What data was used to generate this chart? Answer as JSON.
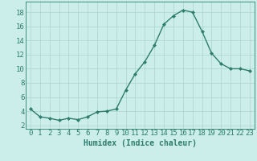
{
  "x": [
    0,
    1,
    2,
    3,
    4,
    5,
    6,
    7,
    8,
    9,
    10,
    11,
    12,
    13,
    14,
    15,
    16,
    17,
    18,
    19,
    20,
    21,
    22,
    23
  ],
  "y": [
    4.3,
    3.2,
    3.0,
    2.7,
    3.0,
    2.8,
    3.2,
    3.9,
    4.0,
    4.3,
    7.0,
    9.3,
    11.0,
    13.3,
    16.3,
    17.5,
    18.3,
    18.0,
    15.3,
    12.2,
    10.7,
    10.0,
    10.0,
    9.7
  ],
  "line_color": "#2e7d6e",
  "marker": "D",
  "marker_size": 2.0,
  "linewidth": 1.0,
  "bg_color": "#cceeea",
  "grid_color": "#aad4ce",
  "xlabel": "Humidex (Indice chaleur)",
  "xlim": [
    -0.5,
    23.5
  ],
  "ylim": [
    1.5,
    19.5
  ],
  "yticks": [
    2,
    4,
    6,
    8,
    10,
    12,
    14,
    16,
    18
  ],
  "xlabel_fontsize": 7,
  "tick_fontsize": 6.5
}
